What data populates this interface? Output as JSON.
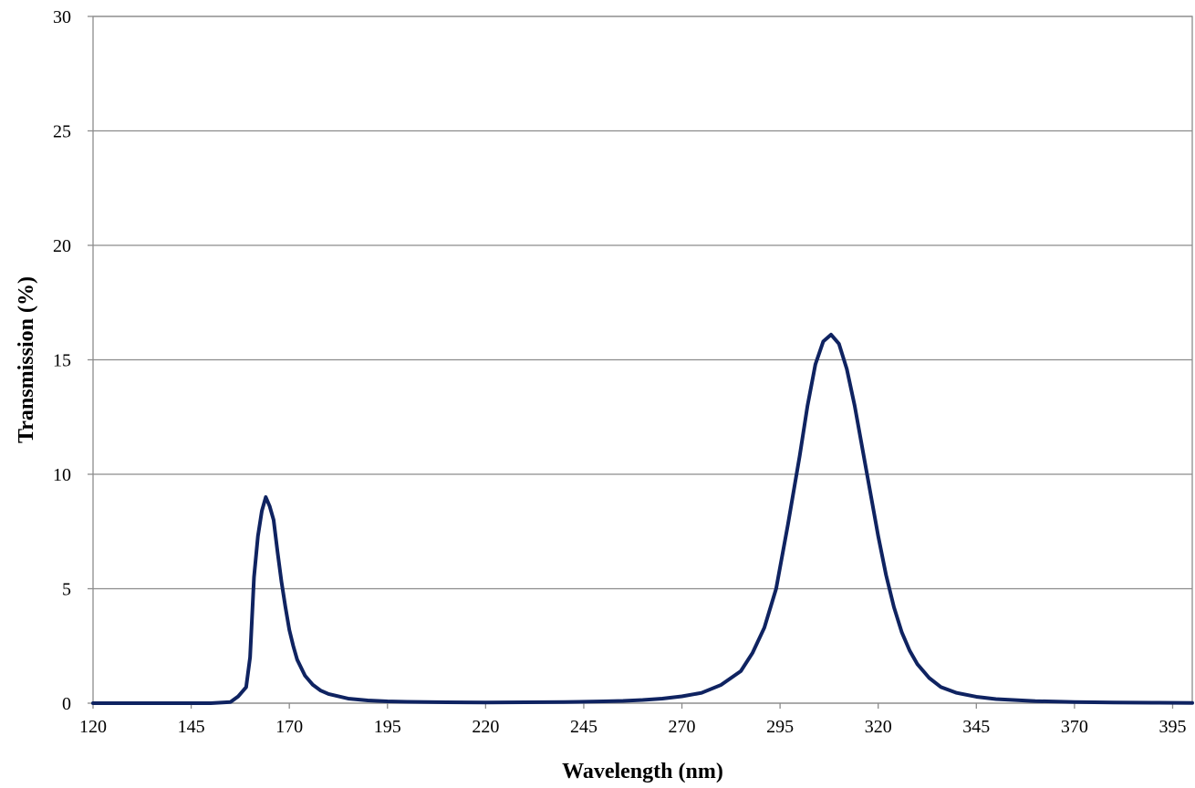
{
  "chart_data": {
    "type": "line",
    "title": "",
    "xlabel": "Wavelength (nm)",
    "ylabel": "Transmission (%)",
    "xlim": [
      120,
      400
    ],
    "ylim": [
      0,
      30
    ],
    "x_ticks": [
      120,
      145,
      170,
      195,
      220,
      245,
      270,
      295,
      320,
      345,
      370,
      395
    ],
    "y_ticks": [
      0,
      5,
      10,
      15,
      20,
      25,
      30
    ],
    "grid": {
      "horizontal": true,
      "vertical": false
    },
    "legend": "none",
    "series": [
      {
        "color": "#0f2361",
        "points": [
          [
            120,
            0
          ],
          [
            130,
            0
          ],
          [
            140,
            0
          ],
          [
            150,
            0
          ],
          [
            155,
            0.05
          ],
          [
            157,
            0.3
          ],
          [
            159,
            0.7
          ],
          [
            160,
            2.0
          ],
          [
            161,
            5.5
          ],
          [
            162,
            7.3
          ],
          [
            163,
            8.4
          ],
          [
            164,
            9.0
          ],
          [
            165,
            8.6
          ],
          [
            166,
            8.0
          ],
          [
            167,
            6.6
          ],
          [
            168,
            5.3
          ],
          [
            169,
            4.2
          ],
          [
            170,
            3.2
          ],
          [
            171,
            2.5
          ],
          [
            172,
            1.9
          ],
          [
            174,
            1.2
          ],
          [
            176,
            0.8
          ],
          [
            178,
            0.55
          ],
          [
            180,
            0.4
          ],
          [
            185,
            0.2
          ],
          [
            190,
            0.12
          ],
          [
            195,
            0.08
          ],
          [
            200,
            0.06
          ],
          [
            210,
            0.04
          ],
          [
            220,
            0.03
          ],
          [
            230,
            0.04
          ],
          [
            240,
            0.05
          ],
          [
            250,
            0.08
          ],
          [
            255,
            0.1
          ],
          [
            260,
            0.14
          ],
          [
            265,
            0.2
          ],
          [
            270,
            0.3
          ],
          [
            275,
            0.45
          ],
          [
            280,
            0.8
          ],
          [
            285,
            1.4
          ],
          [
            288,
            2.2
          ],
          [
            291,
            3.3
          ],
          [
            294,
            5.0
          ],
          [
            297,
            7.8
          ],
          [
            300,
            10.8
          ],
          [
            302,
            13.0
          ],
          [
            304,
            14.8
          ],
          [
            306,
            15.8
          ],
          [
            308,
            16.1
          ],
          [
            310,
            15.7
          ],
          [
            312,
            14.6
          ],
          [
            314,
            13.0
          ],
          [
            316,
            11.1
          ],
          [
            318,
            9.2
          ],
          [
            320,
            7.3
          ],
          [
            322,
            5.6
          ],
          [
            324,
            4.2
          ],
          [
            326,
            3.1
          ],
          [
            328,
            2.3
          ],
          [
            330,
            1.7
          ],
          [
            333,
            1.1
          ],
          [
            336,
            0.7
          ],
          [
            340,
            0.45
          ],
          [
            345,
            0.28
          ],
          [
            350,
            0.18
          ],
          [
            360,
            0.09
          ],
          [
            370,
            0.05
          ],
          [
            380,
            0.03
          ],
          [
            390,
            0.02
          ],
          [
            400,
            0.01
          ]
        ]
      }
    ]
  }
}
